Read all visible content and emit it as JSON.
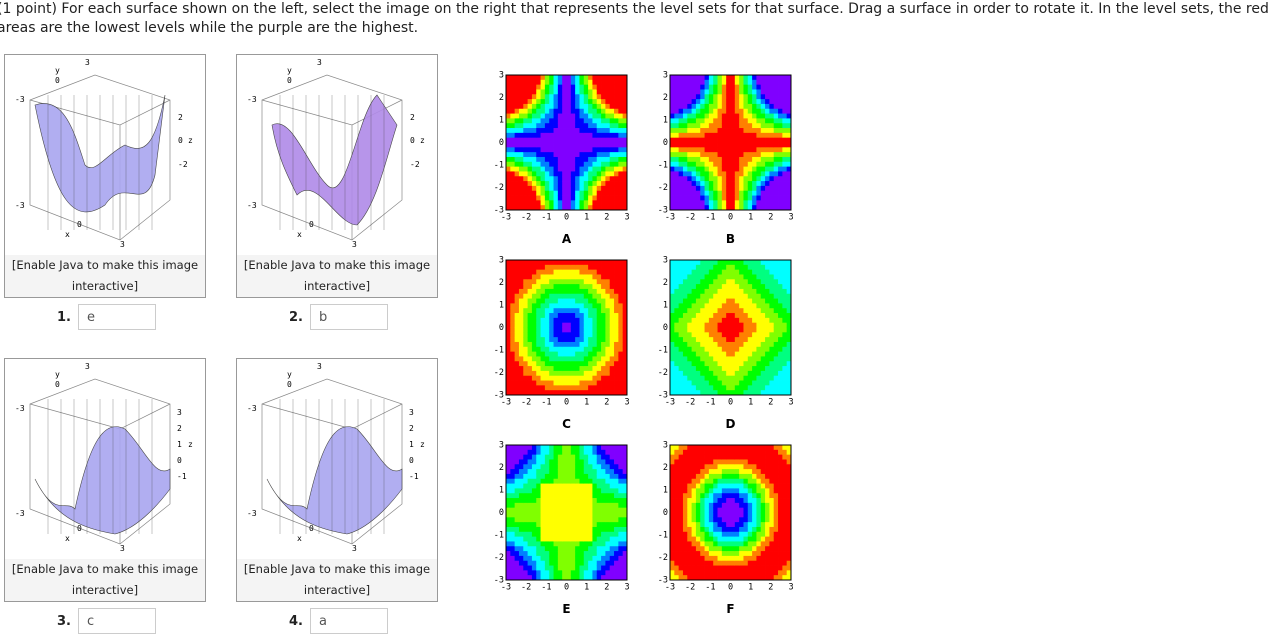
{
  "question": "(1 point) For each surface shown on the left, select the image on the right that represents the level sets for that surface. Drag a surface in order to rotate it. In the level sets, the red areas are the lowest levels while the purple are the highest.",
  "surfaces": [
    {
      "caption": "[Enable Java to make this image interactive]",
      "number": "1.",
      "answer": "e",
      "axis_labels": [
        "y",
        "0",
        "3",
        "-3",
        "-3",
        "x",
        "0",
        "3",
        "2",
        "0",
        "z",
        "-2"
      ]
    },
    {
      "caption": "[Enable Java to make this image interactive]",
      "number": "2.",
      "answer": "b",
      "axis_labels": [
        "y",
        "0",
        "3",
        "-3",
        "-3",
        "x",
        "0",
        "3",
        "2",
        "0",
        "z",
        "-2"
      ]
    },
    {
      "caption": "[Enable Java to make this image interactive]",
      "number": "3.",
      "answer": "c",
      "axis_labels": [
        "y",
        "0",
        "3",
        "-3",
        "-3",
        "x",
        "0",
        "3",
        "3",
        "2",
        "1",
        "z",
        "0",
        "-1"
      ]
    },
    {
      "caption": "[Enable Java to make this image interactive]",
      "number": "4.",
      "answer": "a",
      "axis_labels": [
        "y",
        "0",
        "3",
        "-3",
        "-3",
        "x",
        "0",
        "3",
        "3",
        "2",
        "1",
        "z",
        "0",
        "-1"
      ]
    }
  ],
  "level_sets": [
    {
      "label": "A"
    },
    {
      "label": "B"
    },
    {
      "label": "C"
    },
    {
      "label": "D"
    },
    {
      "label": "E"
    },
    {
      "label": "F"
    }
  ],
  "level_set_ticks": [
    "-3",
    "-2",
    "-1",
    "0",
    "1",
    "2",
    "3"
  ]
}
